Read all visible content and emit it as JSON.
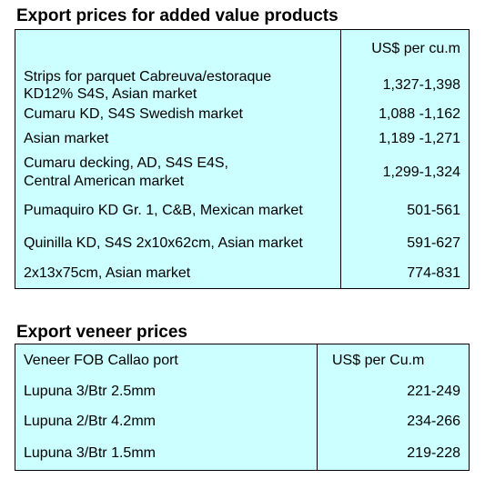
{
  "section1": {
    "title": "Export prices for added value products",
    "header_unit": "US$ per cu.m",
    "rows": [
      {
        "desc": "Strips for parquet Cabreuva/estoraque\nKD12% S4S, Asian market",
        "price": "1,327-1,398"
      },
      {
        "desc": "Cumaru KD, S4S Swedish market",
        "price": "1,088 -1,162"
      },
      {
        "desc": "Asian market",
        "price": "1,189 -1,271"
      },
      {
        "desc": "Cumaru decking, AD, S4S E4S,\nCentral American market",
        "price": "1,299-1,324"
      },
      {
        "desc": "Pumaquiro KD Gr. 1, C&B,  Mexican market",
        "price": "501-561"
      },
      {
        "desc": "Quinilla KD, S4S 2x10x62cm,  Asian market",
        "price": "591-627"
      },
      {
        "desc": "2x13x75cm, Asian market",
        "price": "774-831"
      }
    ]
  },
  "section2": {
    "title": "Export veneer prices",
    "header_desc": "Veneer  FOB Callao port",
    "header_unit": "US$ per Cu.m",
    "rows": [
      {
        "desc": "Lupuna 3/Btr 2.5mm",
        "price": "221-249"
      },
      {
        "desc": "Lupuna 2/Btr 4.2mm",
        "price": "234-266"
      },
      {
        "desc": "Lupuna 3/Btr 1.5mm",
        "price": "219-228"
      }
    ]
  }
}
